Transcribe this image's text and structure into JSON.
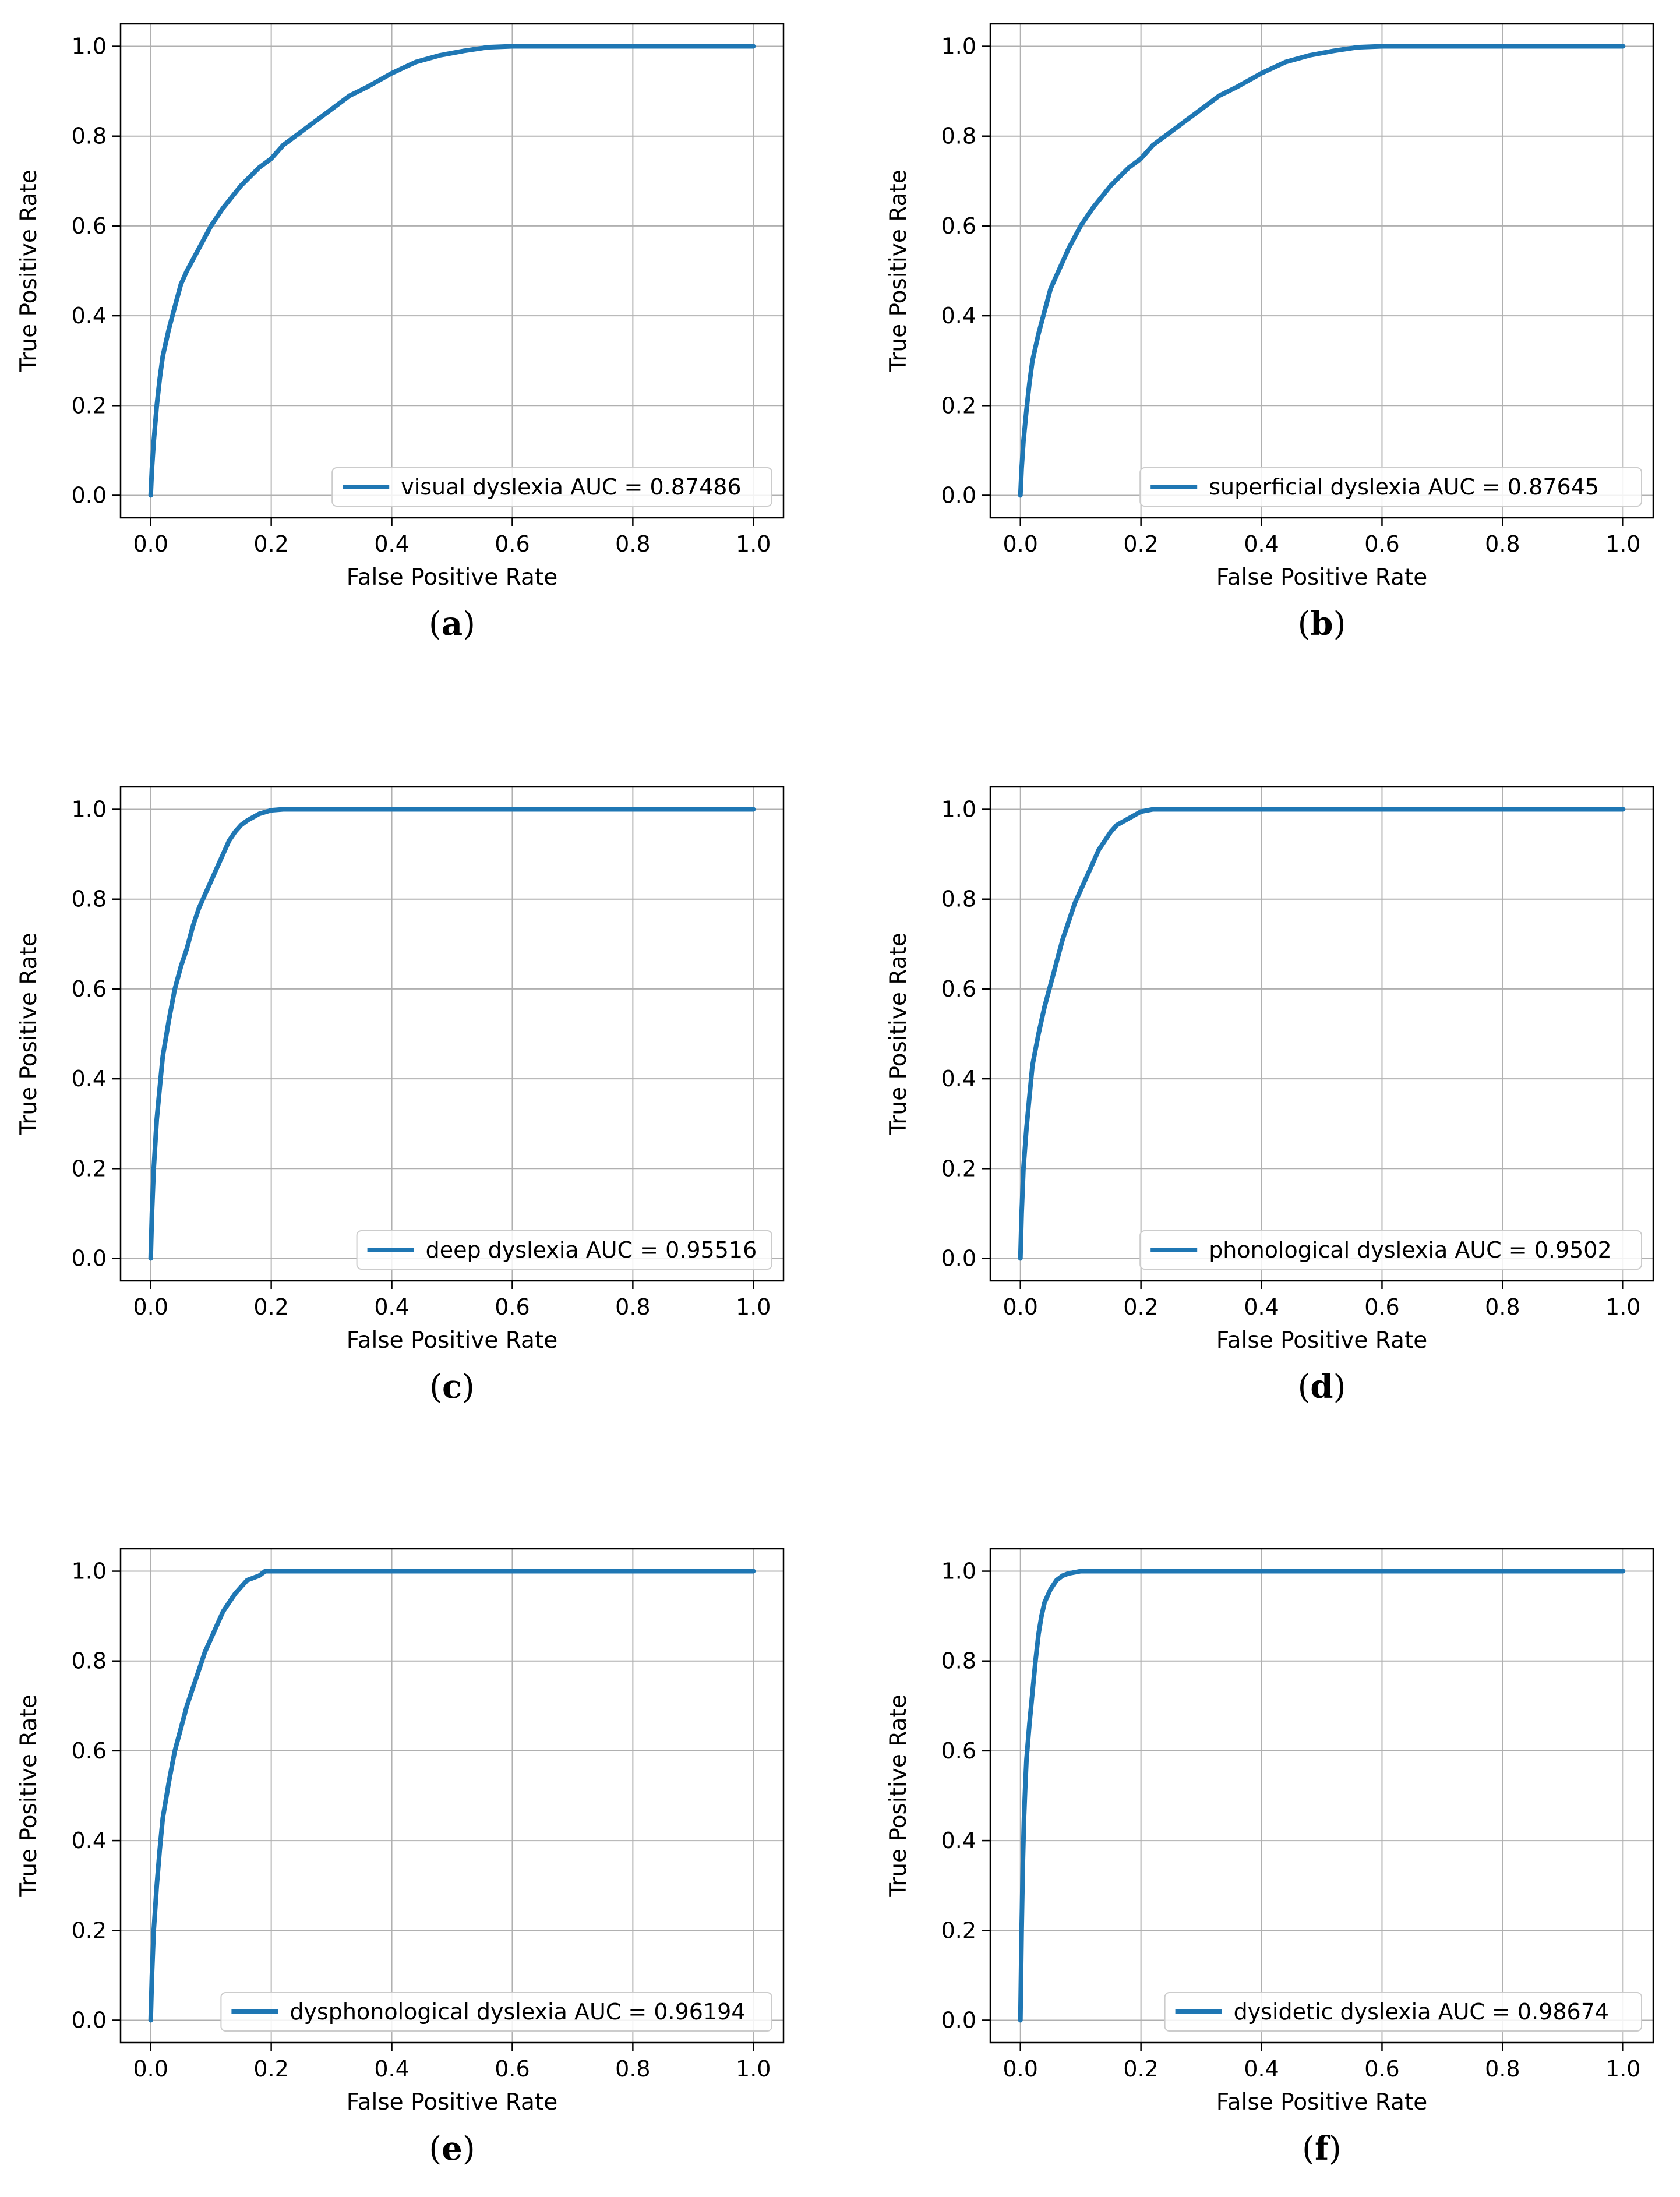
{
  "chart_data": [
    {
      "type": "line",
      "panel": "a",
      "caption_letter": "a",
      "xlabel": "False Positive Rate",
      "ylabel": "True Positive Rate",
      "xlim": [
        -0.05,
        1.05
      ],
      "ylim": [
        -0.05,
        1.05
      ],
      "xticks": [
        "0.0",
        "0.2",
        "0.4",
        "0.6",
        "0.8",
        "1.0"
      ],
      "yticks": [
        "0.0",
        "0.2",
        "0.4",
        "0.6",
        "0.8",
        "1.0"
      ],
      "grid": true,
      "legend_position": "lower right",
      "color": "#1f77b4",
      "series": [
        {
          "name": "visual dyslexia AUC = 0.87486",
          "x": [
            0.0,
            0.002,
            0.005,
            0.01,
            0.015,
            0.02,
            0.03,
            0.04,
            0.05,
            0.06,
            0.08,
            0.1,
            0.12,
            0.15,
            0.18,
            0.2,
            0.22,
            0.25,
            0.28,
            0.3,
            0.33,
            0.36,
            0.4,
            0.44,
            0.48,
            0.52,
            0.56,
            0.6,
            1.0
          ],
          "y": [
            0.0,
            0.06,
            0.12,
            0.2,
            0.26,
            0.31,
            0.37,
            0.42,
            0.47,
            0.5,
            0.55,
            0.6,
            0.64,
            0.69,
            0.73,
            0.75,
            0.78,
            0.81,
            0.84,
            0.86,
            0.89,
            0.91,
            0.94,
            0.965,
            0.98,
            0.99,
            0.998,
            1.0,
            1.0
          ]
        }
      ]
    },
    {
      "type": "line",
      "panel": "b",
      "caption_letter": "b",
      "xlabel": "False Positive Rate",
      "ylabel": "True Positive Rate",
      "xlim": [
        -0.05,
        1.05
      ],
      "ylim": [
        -0.05,
        1.05
      ],
      "xticks": [
        "0.0",
        "0.2",
        "0.4",
        "0.6",
        "0.8",
        "1.0"
      ],
      "yticks": [
        "0.0",
        "0.2",
        "0.4",
        "0.6",
        "0.8",
        "1.0"
      ],
      "grid": true,
      "legend_position": "lower right",
      "color": "#1f77b4",
      "series": [
        {
          "name": "superficial dyslexia AUC = 0.87645",
          "x": [
            0.0,
            0.002,
            0.005,
            0.01,
            0.015,
            0.02,
            0.03,
            0.04,
            0.05,
            0.06,
            0.08,
            0.1,
            0.12,
            0.15,
            0.18,
            0.2,
            0.22,
            0.25,
            0.28,
            0.3,
            0.33,
            0.36,
            0.4,
            0.44,
            0.48,
            0.52,
            0.56,
            0.6,
            1.0
          ],
          "y": [
            0.0,
            0.06,
            0.12,
            0.19,
            0.25,
            0.3,
            0.36,
            0.41,
            0.46,
            0.49,
            0.55,
            0.6,
            0.64,
            0.69,
            0.73,
            0.75,
            0.78,
            0.81,
            0.84,
            0.86,
            0.89,
            0.91,
            0.94,
            0.965,
            0.98,
            0.99,
            0.998,
            1.0,
            1.0
          ]
        }
      ]
    },
    {
      "type": "line",
      "panel": "c",
      "caption_letter": "c",
      "xlabel": "False Positive Rate",
      "ylabel": "True Positive Rate",
      "xlim": [
        -0.05,
        1.05
      ],
      "ylim": [
        -0.05,
        1.05
      ],
      "xticks": [
        "0.0",
        "0.2",
        "0.4",
        "0.6",
        "0.8",
        "1.0"
      ],
      "yticks": [
        "0.0",
        "0.2",
        "0.4",
        "0.6",
        "0.8",
        "1.0"
      ],
      "grid": true,
      "legend_position": "lower right",
      "color": "#1f77b4",
      "series": [
        {
          "name": "deep dyslexia AUC = 0.95516",
          "x": [
            0.0,
            0.002,
            0.005,
            0.01,
            0.015,
            0.02,
            0.03,
            0.04,
            0.05,
            0.06,
            0.07,
            0.08,
            0.09,
            0.1,
            0.11,
            0.12,
            0.13,
            0.14,
            0.15,
            0.16,
            0.18,
            0.2,
            0.22,
            0.25,
            1.0
          ],
          "y": [
            0.0,
            0.1,
            0.2,
            0.31,
            0.38,
            0.45,
            0.53,
            0.6,
            0.65,
            0.69,
            0.74,
            0.78,
            0.81,
            0.84,
            0.87,
            0.9,
            0.93,
            0.95,
            0.965,
            0.975,
            0.99,
            0.998,
            1.0,
            1.0,
            1.0
          ]
        }
      ]
    },
    {
      "type": "line",
      "panel": "d",
      "caption_letter": "d",
      "xlabel": "False Positive Rate",
      "ylabel": "True Positive Rate",
      "xlim": [
        -0.05,
        1.05
      ],
      "ylim": [
        -0.05,
        1.05
      ],
      "xticks": [
        "0.0",
        "0.2",
        "0.4",
        "0.6",
        "0.8",
        "1.0"
      ],
      "yticks": [
        "0.0",
        "0.2",
        "0.4",
        "0.6",
        "0.8",
        "1.0"
      ],
      "grid": true,
      "legend_position": "lower right",
      "color": "#1f77b4",
      "series": [
        {
          "name": "phonological dyslexia AUC = 0.9502",
          "x": [
            0.0,
            0.002,
            0.005,
            0.01,
            0.015,
            0.02,
            0.03,
            0.04,
            0.05,
            0.06,
            0.07,
            0.08,
            0.09,
            0.1,
            0.11,
            0.12,
            0.13,
            0.14,
            0.15,
            0.16,
            0.18,
            0.2,
            0.22,
            0.25,
            1.0
          ],
          "y": [
            0.0,
            0.1,
            0.2,
            0.29,
            0.36,
            0.43,
            0.5,
            0.56,
            0.61,
            0.66,
            0.71,
            0.75,
            0.79,
            0.82,
            0.85,
            0.88,
            0.91,
            0.93,
            0.95,
            0.965,
            0.98,
            0.995,
            1.0,
            1.0,
            1.0
          ]
        }
      ]
    },
    {
      "type": "line",
      "panel": "e",
      "caption_letter": "e",
      "xlabel": "False Positive Rate",
      "ylabel": "True Positive Rate",
      "xlim": [
        -0.05,
        1.05
      ],
      "ylim": [
        -0.05,
        1.05
      ],
      "xticks": [
        "0.0",
        "0.2",
        "0.4",
        "0.6",
        "0.8",
        "1.0"
      ],
      "yticks": [
        "0.0",
        "0.2",
        "0.4",
        "0.6",
        "0.8",
        "1.0"
      ],
      "grid": true,
      "legend_position": "lower right",
      "color": "#1f77b4",
      "series": [
        {
          "name": "dysphonological dyslexia AUC = 0.96194",
          "x": [
            0.0,
            0.002,
            0.005,
            0.01,
            0.015,
            0.02,
            0.03,
            0.04,
            0.05,
            0.06,
            0.07,
            0.08,
            0.09,
            0.1,
            0.11,
            0.12,
            0.13,
            0.14,
            0.15,
            0.16,
            0.18,
            0.19,
            0.2,
            1.0
          ],
          "y": [
            0.0,
            0.1,
            0.2,
            0.3,
            0.38,
            0.45,
            0.53,
            0.6,
            0.65,
            0.7,
            0.74,
            0.78,
            0.82,
            0.85,
            0.88,
            0.91,
            0.93,
            0.95,
            0.965,
            0.98,
            0.99,
            1.0,
            1.0,
            1.0
          ]
        }
      ]
    },
    {
      "type": "line",
      "panel": "f",
      "caption_letter": "f",
      "xlabel": "False Positive Rate",
      "ylabel": "True Positive Rate",
      "xlim": [
        -0.05,
        1.05
      ],
      "ylim": [
        -0.05,
        1.05
      ],
      "xticks": [
        "0.0",
        "0.2",
        "0.4",
        "0.6",
        "0.8",
        "1.0"
      ],
      "yticks": [
        "0.0",
        "0.2",
        "0.4",
        "0.6",
        "0.8",
        "1.0"
      ],
      "grid": true,
      "legend_position": "lower right",
      "color": "#1f77b4",
      "series": [
        {
          "name": "dysidetic dyslexia AUC = 0.98674",
          "x": [
            0.0,
            0.002,
            0.004,
            0.006,
            0.008,
            0.01,
            0.015,
            0.02,
            0.025,
            0.03,
            0.035,
            0.04,
            0.05,
            0.06,
            0.07,
            0.08,
            0.1,
            0.12,
            1.0
          ],
          "y": [
            0.0,
            0.2,
            0.35,
            0.45,
            0.52,
            0.58,
            0.66,
            0.73,
            0.8,
            0.86,
            0.9,
            0.93,
            0.96,
            0.98,
            0.99,
            0.995,
            1.0,
            1.0,
            1.0
          ]
        }
      ]
    }
  ]
}
